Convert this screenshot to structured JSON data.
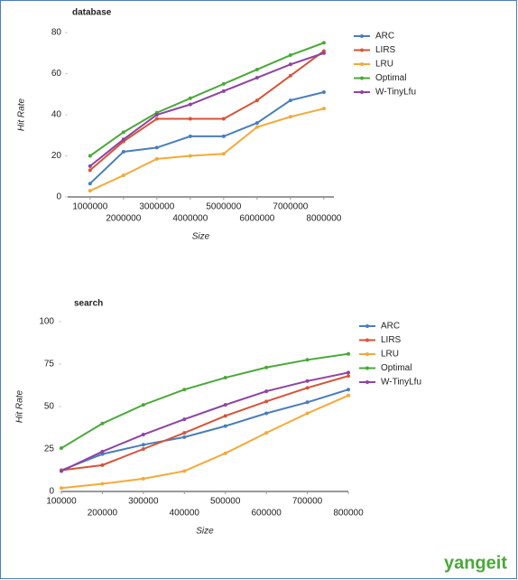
{
  "chart_data": [
    {
      "type": "line",
      "title": "database",
      "x_label": "Size",
      "y_label": "Hit Rate",
      "x": [
        1000000,
        2000000,
        3000000,
        4000000,
        5000000,
        6000000,
        7000000,
        8000000
      ],
      "xlim": [
        330000,
        8300000
      ],
      "xticks": [
        1000000,
        2000000,
        3000000,
        4000000,
        5000000,
        6000000,
        7000000,
        8000000
      ],
      "ylim": [
        0,
        80
      ],
      "yticks": [
        0,
        20,
        40,
        60,
        80
      ],
      "grid": false,
      "legend": "right",
      "series": [
        {
          "name": "ARC",
          "color": "#4a7ebb",
          "values": [
            6.5,
            22,
            24,
            29.5,
            29.5,
            36,
            47,
            51
          ]
        },
        {
          "name": "LIRS",
          "color": "#d6543a",
          "values": [
            13,
            27,
            38,
            38,
            38,
            47,
            59,
            71
          ]
        },
        {
          "name": "LRU",
          "color": "#f4a93a",
          "values": [
            3,
            10.5,
            18.5,
            20,
            21,
            34,
            39,
            43
          ]
        },
        {
          "name": "Optimal",
          "color": "#4aa83a",
          "values": [
            20,
            31.5,
            41,
            48,
            55,
            62,
            69,
            75
          ]
        },
        {
          "name": "W-TinyLfu",
          "color": "#8e44a0",
          "values": [
            15,
            28,
            40,
            45,
            51.5,
            58,
            64.5,
            70
          ]
        }
      ]
    },
    {
      "type": "line",
      "title": "search",
      "x_label": "Size",
      "y_label": "Hit Rate",
      "x": [
        100000,
        200000,
        300000,
        400000,
        500000,
        600000,
        700000,
        800000
      ],
      "xlim": [
        100000,
        800000
      ],
      "xticks": [
        100000,
        200000,
        300000,
        400000,
        500000,
        600000,
        700000,
        800000
      ],
      "ylim": [
        0,
        100
      ],
      "yticks": [
        0,
        25,
        50,
        75,
        100
      ],
      "grid": false,
      "legend": "right",
      "series": [
        {
          "name": "ARC",
          "color": "#4a7ebb",
          "values": [
            12.5,
            22,
            27.5,
            32,
            38.5,
            46,
            52.5,
            60
          ]
        },
        {
          "name": "LIRS",
          "color": "#d6543a",
          "values": [
            12.5,
            15.5,
            25,
            34.5,
            44.5,
            53,
            61,
            68
          ]
        },
        {
          "name": "LRU",
          "color": "#f4a93a",
          "values": [
            2,
            4.5,
            7.5,
            12,
            22.5,
            34.5,
            46,
            56.5
          ]
        },
        {
          "name": "Optimal",
          "color": "#4aa83a",
          "values": [
            25.5,
            40,
            51,
            60,
            67,
            73,
            77.5,
            81
          ]
        },
        {
          "name": "W-TinyLfu",
          "color": "#8e44a0",
          "values": [
            12,
            23.5,
            33.5,
            42.5,
            51,
            59,
            65,
            70
          ]
        }
      ]
    }
  ],
  "watermark": "yangeit"
}
